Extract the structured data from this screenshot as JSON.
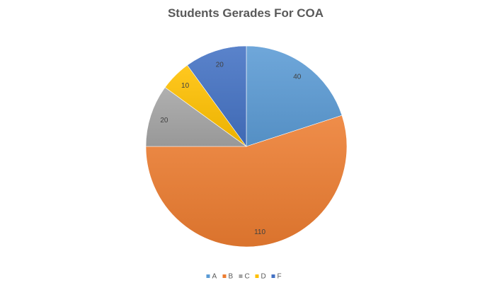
{
  "chart_data": {
    "type": "pie",
    "title": "Students Gerades For COA",
    "categories": [
      "A",
      "B",
      "C",
      "D",
      "F"
    ],
    "values": [
      40,
      110,
      20,
      10,
      20
    ],
    "colors": [
      "#5b9bd5",
      "#ed7d31",
      "#a5a5a5",
      "#ffc000",
      "#4472c4"
    ],
    "data_labels": [
      "40",
      "110",
      "20",
      "10",
      "20"
    ],
    "start_angle_deg": 0,
    "direction": "clockwise",
    "legend_position": "bottom"
  }
}
